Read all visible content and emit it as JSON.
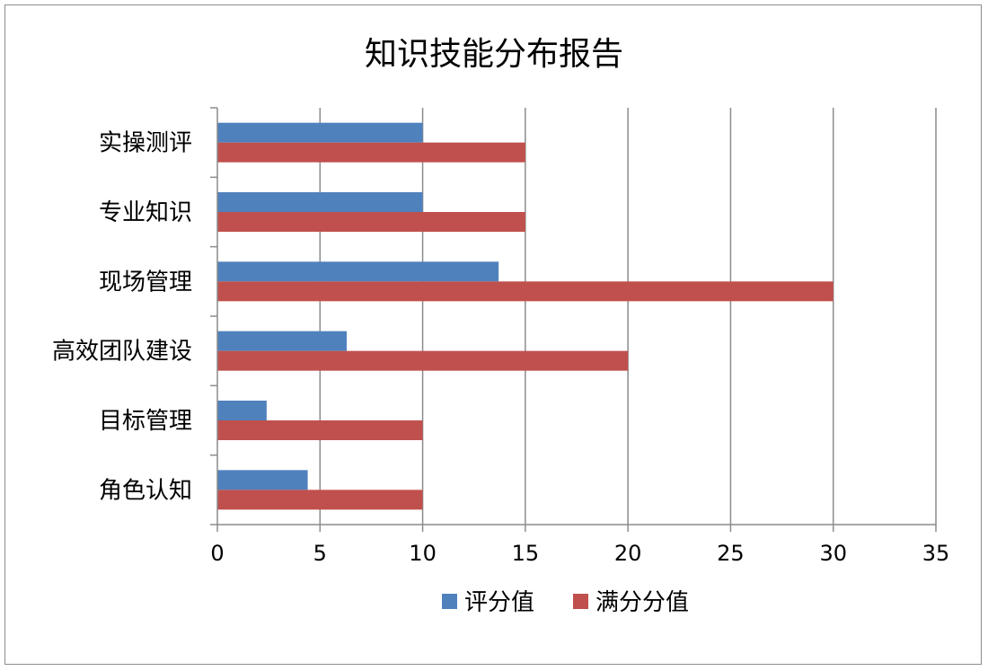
{
  "chart_data": {
    "type": "bar",
    "orientation": "horizontal",
    "title": "知识技能分布报告",
    "categories": [
      "实操测评",
      "专业知识",
      "现场管理",
      "高效团队建设",
      "目标管理",
      "角色认知"
    ],
    "series": [
      {
        "name": "评分值",
        "color": "#4f81bd",
        "values": [
          10,
          10,
          13.7,
          6.3,
          2.4,
          4.4
        ]
      },
      {
        "name": "满分分值",
        "color": "#c0504d",
        "values": [
          15,
          15,
          30,
          20,
          10,
          10
        ]
      }
    ],
    "xlim": [
      0,
      35
    ],
    "xticks": [
      "0",
      "5",
      "10",
      "15",
      "20",
      "25",
      "30",
      "35"
    ],
    "grid": "vertical",
    "legend": "bottom"
  }
}
